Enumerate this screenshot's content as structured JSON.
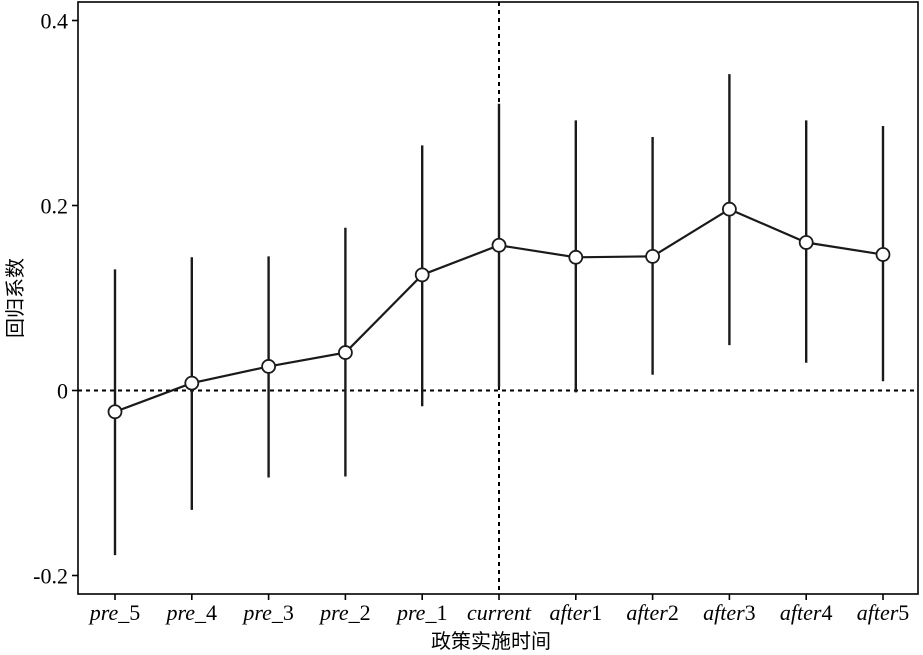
{
  "chart_data": {
    "type": "line",
    "title": "",
    "xlabel": "政策实施时间",
    "ylabel": "回归系数",
    "categories": [
      {
        "label": "pre_5",
        "italic": "pre",
        "plain": "_5"
      },
      {
        "label": "pre_4",
        "italic": "pre",
        "plain": "_4"
      },
      {
        "label": "pre_3",
        "italic": "pre",
        "plain": "_3"
      },
      {
        "label": "pre_2",
        "italic": "pre",
        "plain": "_2"
      },
      {
        "label": "pre_1",
        "italic": "pre",
        "plain": "_1"
      },
      {
        "label": "current",
        "italic": "current",
        "plain": ""
      },
      {
        "label": "after1",
        "italic": "after",
        "plain": "1"
      },
      {
        "label": "after2",
        "italic": "after",
        "plain": "2"
      },
      {
        "label": "after3",
        "italic": "after",
        "plain": "3"
      },
      {
        "label": "after4",
        "italic": "after",
        "plain": "4"
      },
      {
        "label": "after5",
        "italic": "after",
        "plain": "5"
      }
    ],
    "values": [
      -0.023,
      0.008,
      0.026,
      0.041,
      0.125,
      0.157,
      0.144,
      0.145,
      0.196,
      0.16,
      0.147
    ],
    "ci_lower": [
      -0.178,
      -0.129,
      -0.094,
      -0.093,
      -0.017,
      0.004,
      -0.002,
      0.017,
      0.049,
      0.03,
      0.01
    ],
    "ci_upper": [
      0.131,
      0.144,
      0.145,
      0.176,
      0.265,
      0.31,
      0.292,
      0.274,
      0.342,
      0.292,
      0.286
    ],
    "ylim": [
      -0.22,
      0.42
    ],
    "yticks": [
      {
        "value": -0.2,
        "label": "-0.2"
      },
      {
        "value": 0,
        "label": "0"
      },
      {
        "value": 0.2,
        "label": "0.2"
      },
      {
        "value": 0.4,
        "label": "0.4"
      }
    ],
    "reference_lines": {
      "y": 0,
      "x_category": "current",
      "style": "dotted"
    },
    "grid": false,
    "legend": "none",
    "colors": {
      "line": "#1a1a1a",
      "marker_fill": "#ffffff",
      "marker_stroke": "#1a1a1a"
    }
  }
}
